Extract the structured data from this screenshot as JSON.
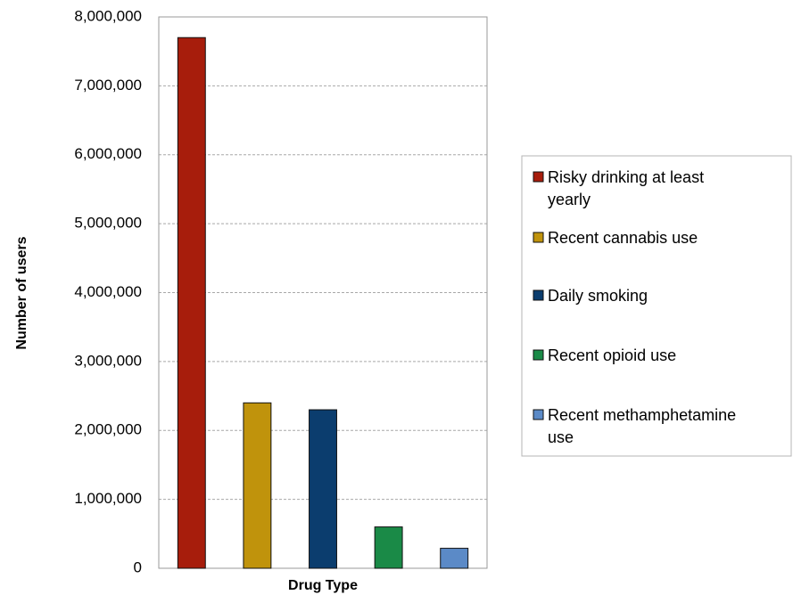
{
  "chart_data": {
    "type": "bar",
    "title": "",
    "xlabel": "Drug Type",
    "ylabel": "Number of users",
    "ylim": [
      0,
      8000000
    ],
    "y_ticks": [
      {
        "value": 0,
        "label": "0"
      },
      {
        "value": 1000000,
        "label": "1,000,000"
      },
      {
        "value": 2000000,
        "label": "2,000,000"
      },
      {
        "value": 3000000,
        "label": "3,000,000"
      },
      {
        "value": 4000000,
        "label": "4,000,000"
      },
      {
        "value": 5000000,
        "label": "5,000,000"
      },
      {
        "value": 6000000,
        "label": "6,000,000"
      },
      {
        "value": 7000000,
        "label": "7,000,000"
      },
      {
        "value": 8000000,
        "label": "8,000,000"
      }
    ],
    "grid": "horizontal dashed",
    "legend_position": "right",
    "series": [
      {
        "name": "Risky drinking at least yearly",
        "value": 7700000,
        "color": "#a71d0c"
      },
      {
        "name": "Recent cannabis use",
        "value": 2400000,
        "color": "#c0930c"
      },
      {
        "name": "Daily smoking",
        "value": 2300000,
        "color": "#0b3d6e"
      },
      {
        "name": "Recent opioid use",
        "value": 600000,
        "color": "#1a8a47"
      },
      {
        "name": "Recent methamphetamine use",
        "value": 290000,
        "color": "#5b8ac7"
      }
    ]
  }
}
